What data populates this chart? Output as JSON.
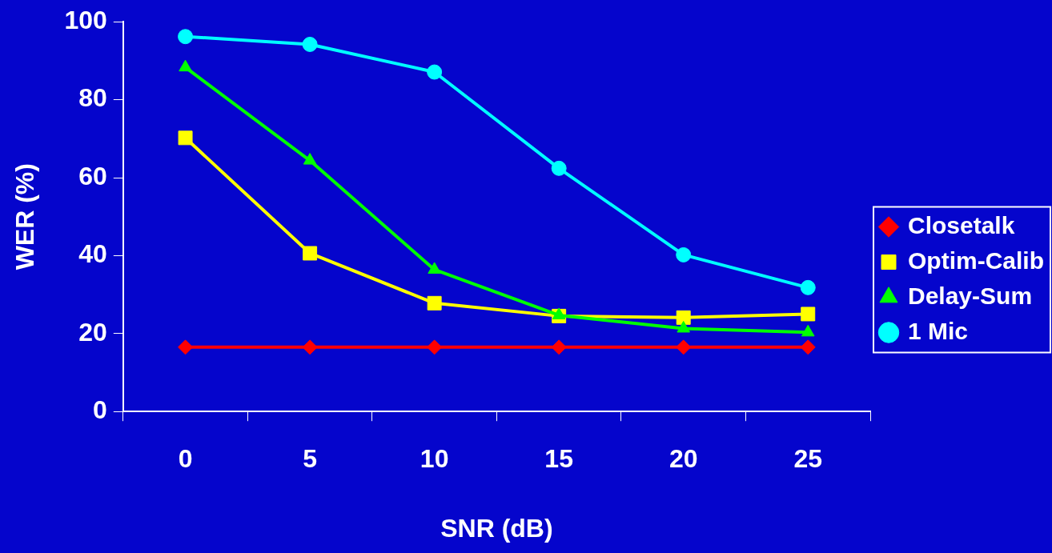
{
  "chart_data": {
    "type": "line",
    "xlabel": "SNR (dB)",
    "ylabel": "WER (%)",
    "categories": [
      "0",
      "5",
      "10",
      "15",
      "20",
      "25"
    ],
    "ylim": [
      0,
      100
    ],
    "yticks": [
      0,
      20,
      40,
      60,
      80,
      100
    ],
    "grid": false,
    "legend": "right",
    "series": [
      {
        "name": "Closetalk",
        "color": "#ff0000",
        "marker": "diamond",
        "values": [
          16.5,
          16.5,
          16.5,
          16.5,
          16.5,
          16.5
        ]
      },
      {
        "name": "Optim-Calib",
        "color": "#ffff00",
        "marker": "square",
        "values": [
          70.2,
          40.6,
          27.8,
          24.5,
          24.1,
          25
        ]
      },
      {
        "name": "Delay-Sum",
        "color": "#00ff00",
        "marker": "triangle",
        "values": [
          88.3,
          64.4,
          36.4,
          24.7,
          21.3,
          20.3
        ]
      },
      {
        "name": "1 Mic",
        "color": "#00ffff",
        "marker": "circle",
        "values": [
          96.2,
          94.2,
          87.1,
          62.4,
          40.2,
          31.8
        ]
      }
    ]
  }
}
